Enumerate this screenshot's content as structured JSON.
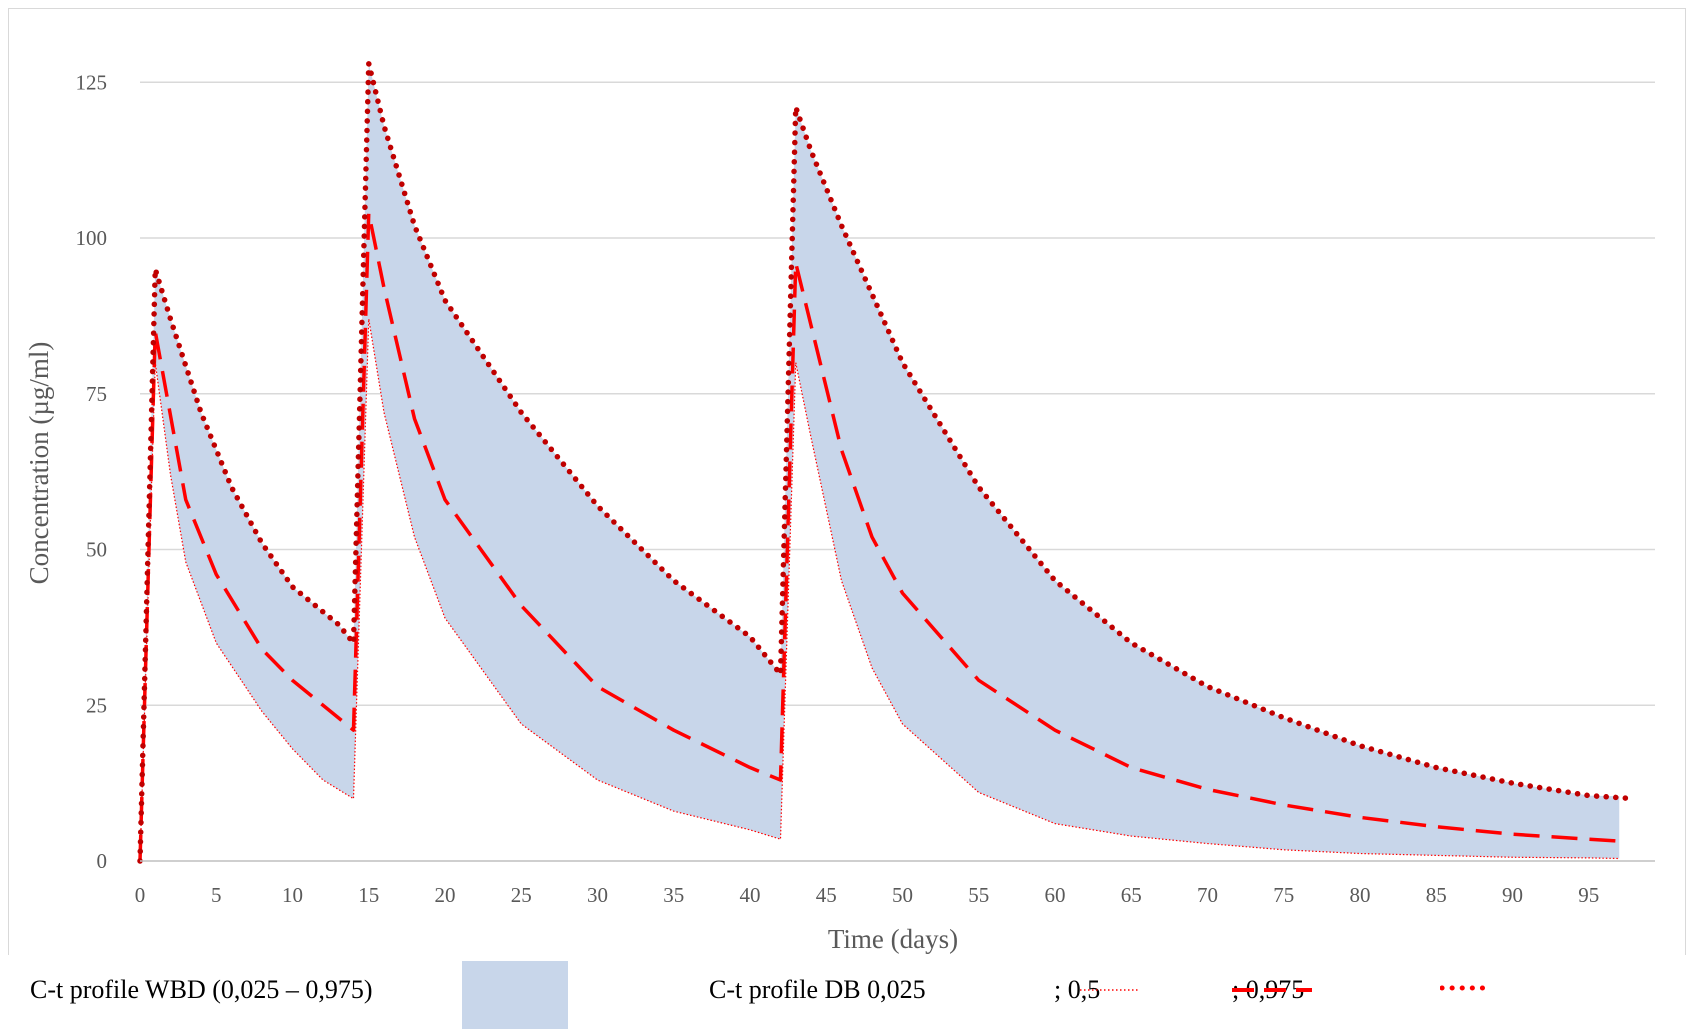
{
  "chart_data": {
    "type": "area",
    "title": "",
    "xlabel": "Time (days)",
    "ylabel": "Concentration (µg/ml)",
    "xlim": [
      0,
      100
    ],
    "ylim": [
      0,
      135
    ],
    "x_ticks": [
      0,
      5,
      10,
      15,
      20,
      25,
      30,
      35,
      40,
      45,
      50,
      55,
      60,
      65,
      70,
      75,
      80,
      85,
      90,
      95
    ],
    "y_ticks": [
      0,
      25,
      50,
      75,
      100,
      125
    ],
    "grid": "horizontal",
    "legend_position": "bottom",
    "colors": {
      "band": "#c8d6ea",
      "line": "#ff0000",
      "upper": "#c00000",
      "grid": "#d9d9d9",
      "axis": "#bfbfbf"
    },
    "dose_times": [
      0,
      14,
      42
    ],
    "series": [
      {
        "name": "0,5",
        "style": "dashed",
        "points": [
          [
            0,
            0
          ],
          [
            1,
            85
          ],
          [
            3,
            58
          ],
          [
            5,
            46
          ],
          [
            8,
            34
          ],
          [
            10,
            29
          ],
          [
            12,
            25
          ],
          [
            14,
            21
          ],
          [
            15,
            104
          ],
          [
            16,
            92
          ],
          [
            18,
            71
          ],
          [
            20,
            58
          ],
          [
            25,
            41
          ],
          [
            30,
            28
          ],
          [
            35,
            21
          ],
          [
            40,
            15
          ],
          [
            42,
            13
          ],
          [
            43,
            96
          ],
          [
            44,
            86
          ],
          [
            46,
            66
          ],
          [
            48,
            52
          ],
          [
            50,
            43
          ],
          [
            55,
            29
          ],
          [
            60,
            21
          ],
          [
            65,
            15
          ],
          [
            70,
            11.5
          ],
          [
            75,
            9
          ],
          [
            80,
            7
          ],
          [
            85,
            5.5
          ],
          [
            90,
            4.3
          ],
          [
            95,
            3.5
          ],
          [
            97,
            3.2
          ]
        ]
      },
      {
        "name": "0,025",
        "style": "dotted-thin",
        "points": [
          [
            0,
            0
          ],
          [
            1,
            80
          ],
          [
            2,
            62
          ],
          [
            3,
            48
          ],
          [
            5,
            35
          ],
          [
            8,
            24
          ],
          [
            10,
            18
          ],
          [
            12,
            13
          ],
          [
            14,
            10
          ],
          [
            15,
            87
          ],
          [
            16,
            72
          ],
          [
            18,
            52
          ],
          [
            20,
            39
          ],
          [
            25,
            22
          ],
          [
            30,
            13
          ],
          [
            35,
            8
          ],
          [
            40,
            5
          ],
          [
            42,
            3.5
          ],
          [
            43,
            80
          ],
          [
            44,
            68
          ],
          [
            46,
            45
          ],
          [
            48,
            31
          ],
          [
            50,
            22
          ],
          [
            55,
            11
          ],
          [
            60,
            6
          ],
          [
            65,
            4
          ],
          [
            70,
            2.8
          ],
          [
            75,
            1.8
          ],
          [
            80,
            1.2
          ],
          [
            85,
            0.9
          ],
          [
            90,
            0.6
          ],
          [
            95,
            0.5
          ],
          [
            97,
            0.4
          ]
        ]
      },
      {
        "name": "0,975",
        "style": "dotted-bold",
        "points": [
          [
            0,
            0
          ],
          [
            1,
            95
          ],
          [
            2,
            87
          ],
          [
            4,
            72
          ],
          [
            6,
            60
          ],
          [
            8,
            51
          ],
          [
            10,
            44
          ],
          [
            12,
            40
          ],
          [
            13,
            38
          ],
          [
            14,
            35
          ],
          [
            15,
            128
          ],
          [
            16,
            118
          ],
          [
            18,
            102
          ],
          [
            20,
            90
          ],
          [
            25,
            72
          ],
          [
            30,
            57
          ],
          [
            35,
            45
          ],
          [
            40,
            36
          ],
          [
            42,
            30
          ],
          [
            43,
            121
          ],
          [
            44,
            114
          ],
          [
            46,
            102
          ],
          [
            50,
            80
          ],
          [
            55,
            60
          ],
          [
            60,
            45
          ],
          [
            65,
            35
          ],
          [
            70,
            28
          ],
          [
            75,
            23
          ],
          [
            80,
            18.5
          ],
          [
            85,
            15
          ],
          [
            90,
            12.5
          ],
          [
            95,
            10.5
          ],
          [
            98,
            10
          ]
        ]
      }
    ],
    "band_name": "WBD (0,025 – 0,975)"
  },
  "legend": {
    "band_label": "C-t profile WBD (0,025 – 0,975)",
    "db_label": "C-t profile DB 0,025",
    "median_label": "; 0,5",
    "upper_label": "; 0,975"
  }
}
